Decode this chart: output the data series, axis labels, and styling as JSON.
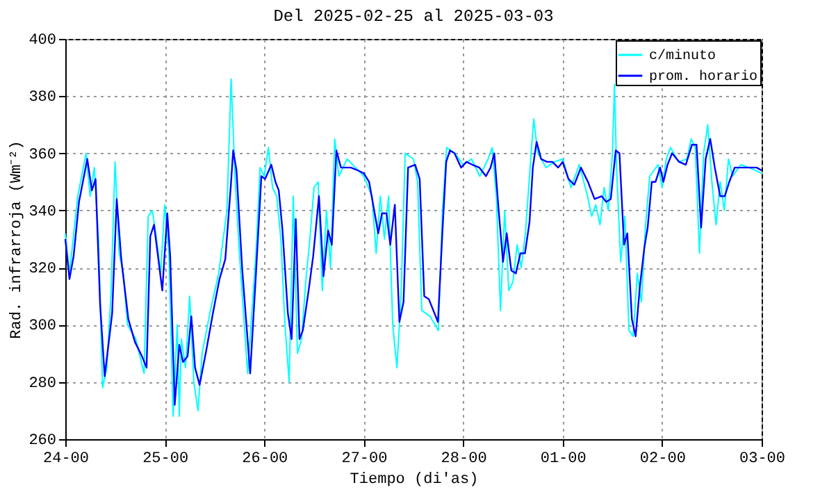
{
  "chart_data": {
    "type": "line",
    "title": "Del 2025-02-25 al 2025-03-03",
    "xlabel": "Tiempo (di'as)",
    "ylabel": "Rad. infrarroja (Wm⁻²)",
    "xlim": [
      "2025-02-24T00:00",
      "2025-03-03T00:00"
    ],
    "xticks": [
      {
        "value": "2025-02-24T00:00",
        "label": "24-00"
      },
      {
        "value": "2025-02-25T00:00",
        "label": "25-00"
      },
      {
        "value": "2025-02-26T00:00",
        "label": "26-00"
      },
      {
        "value": "2025-02-27T00:00",
        "label": "27-00"
      },
      {
        "value": "2025-02-28T00:00",
        "label": "28-00"
      },
      {
        "value": "2025-03-01T00:00",
        "label": "01-00"
      },
      {
        "value": "2025-03-02T00:00",
        "label": "02-00"
      },
      {
        "value": "2025-03-03T00:00",
        "label": "03-00"
      }
    ],
    "ylim": [
      260,
      400
    ],
    "yticks": [
      260,
      280,
      300,
      320,
      340,
      360,
      380,
      400
    ],
    "grid": true,
    "legend": "top right",
    "marker": "none",
    "line_style": "solid",
    "series": [
      {
        "name": "c/minuto",
        "color": "#00ffff",
        "x": [
          "2025-02-24T00:00",
          "2025-02-24T01:00",
          "2025-02-24T03:00",
          "2025-02-24T05:00",
          "2025-02-24T06:00",
          "2025-02-24T07:00",
          "2025-02-24T08:00",
          "2025-02-24T09:00",
          "2025-02-24T10:00",
          "2025-02-24T11:00",
          "2025-02-24T12:00",
          "2025-02-24T13:00",
          "2025-02-24T14:00",
          "2025-02-24T15:00",
          "2025-02-24T17:00",
          "2025-02-24T19:00",
          "2025-02-24T20:00",
          "2025-02-24T21:00",
          "2025-02-24T22:00",
          "2025-02-24T23:00",
          "2025-02-25T00:00",
          "2025-02-25T01:00",
          "2025-02-25T02:00",
          "2025-02-25T03:00",
          "2025-02-25T03:30",
          "2025-02-25T04:00",
          "2025-02-25T05:00",
          "2025-02-25T06:00",
          "2025-02-25T07:00",
          "2025-02-25T08:00",
          "2025-02-25T09:00",
          "2025-02-25T11:00",
          "2025-02-25T13:00",
          "2025-02-25T15:00",
          "2025-02-25T16:00",
          "2025-02-25T17:00",
          "2025-02-25T18:00",
          "2025-02-25T20:00",
          "2025-02-25T22:00",
          "2025-02-25T23:00",
          "2025-02-26T00:00",
          "2025-02-26T01:00",
          "2025-02-26T02:00",
          "2025-02-26T03:00",
          "2025-02-26T04:00",
          "2025-02-26T05:00",
          "2025-02-26T06:00",
          "2025-02-26T07:00",
          "2025-02-26T08:00",
          "2025-02-26T09:00",
          "2025-02-26T10:00",
          "2025-02-26T11:00",
          "2025-02-26T12:00",
          "2025-02-26T13:00",
          "2025-02-26T14:00",
          "2025-02-26T15:00",
          "2025-02-26T16:00",
          "2025-02-26T17:00",
          "2025-02-26T18:00",
          "2025-02-26T20:00",
          "2025-02-26T22:00",
          "2025-02-27T00:00",
          "2025-02-27T02:00",
          "2025-02-27T03:00",
          "2025-02-27T04:00",
          "2025-02-27T05:00",
          "2025-02-27T06:00",
          "2025-02-27T07:00",
          "2025-02-27T08:00",
          "2025-02-27T09:00",
          "2025-02-27T10:00",
          "2025-02-27T12:00",
          "2025-02-27T13:00",
          "2025-02-27T14:00",
          "2025-02-27T16:00",
          "2025-02-27T18:00",
          "2025-02-27T19:00",
          "2025-02-27T20:00",
          "2025-02-27T22:00",
          "2025-02-28T00:00",
          "2025-02-28T02:00",
          "2025-02-28T04:00",
          "2025-02-28T06:00",
          "2025-02-28T07:00",
          "2025-02-28T08:00",
          "2025-02-28T09:00",
          "2025-02-28T10:00",
          "2025-02-28T11:00",
          "2025-02-28T12:00",
          "2025-02-28T13:00",
          "2025-02-28T14:00",
          "2025-02-28T15:00",
          "2025-02-28T16:00",
          "2025-02-28T17:00",
          "2025-02-28T18:00",
          "2025-02-28T20:00",
          "2025-02-28T22:00",
          "2025-03-01T00:00",
          "2025-03-01T02:00",
          "2025-03-01T04:00",
          "2025-03-01T06:00",
          "2025-03-01T07:00",
          "2025-03-01T08:00",
          "2025-03-01T09:00",
          "2025-03-01T10:00",
          "2025-03-01T11:00",
          "2025-03-01T12:00",
          "2025-03-01T12:30",
          "2025-03-01T13:00",
          "2025-03-01T14:00",
          "2025-03-01T15:00",
          "2025-03-01T16:00",
          "2025-03-01T17:00",
          "2025-03-01T18:00",
          "2025-03-01T19:00",
          "2025-03-01T20:00",
          "2025-03-01T21:00",
          "2025-03-01T23:00",
          "2025-03-02T00:00",
          "2025-03-02T01:00",
          "2025-03-02T02:00",
          "2025-03-02T04:00",
          "2025-03-02T06:00",
          "2025-03-02T07:00",
          "2025-03-02T08:00",
          "2025-03-02T09:00",
          "2025-03-02T10:00",
          "2025-03-02T11:00",
          "2025-03-02T12:00",
          "2025-03-02T13:00",
          "2025-03-02T14:00",
          "2025-03-02T15:00",
          "2025-03-02T16:00",
          "2025-03-02T17:00",
          "2025-03-02T19:00",
          "2025-03-02T21:00",
          "2025-03-03T00:00"
        ],
        "values": [
          332,
          318,
          345,
          360,
          345,
          355,
          330,
          278,
          285,
          310,
          357,
          325,
          318,
          300,
          295,
          283,
          338,
          340,
          330,
          318,
          342,
          325,
          268,
          300,
          268,
          295,
          285,
          310,
          280,
          270,
          290,
          305,
          318,
          340,
          386,
          350,
          325,
          283,
          325,
          355,
          352,
          362,
          348,
          345,
          330,
          300,
          280,
          345,
          290,
          295,
          315,
          330,
          348,
          350,
          312,
          340,
          320,
          365,
          352,
          358,
          355,
          352,
          345,
          325,
          345,
          330,
          345,
          300,
          285,
          310,
          360,
          358,
          350,
          305,
          303,
          298,
          340,
          362,
          360,
          356,
          358,
          352,
          358,
          362,
          345,
          305,
          340,
          312,
          315,
          328,
          320,
          332,
          352,
          372,
          360,
          355,
          357,
          358,
          348,
          356,
          345,
          338,
          342,
          335,
          348,
          340,
          360,
          384,
          355,
          322,
          338,
          298,
          296,
          318,
          308,
          335,
          352,
          356,
          348,
          358,
          362,
          357,
          358,
          365,
          362,
          325,
          360,
          370,
          350,
          335,
          350,
          340,
          358,
          352,
          356,
          355,
          353
        ]
      },
      {
        "name": "prom. horario",
        "color": "#0000ff",
        "x": [
          "2025-02-24T00:00",
          "2025-02-24T01:00",
          "2025-02-24T02:00",
          "2025-02-24T03:18",
          "2025-02-24T05:18",
          "2025-02-24T06:24",
          "2025-02-24T07:18",
          "2025-02-24T08:24",
          "2025-02-24T09:30",
          "2025-02-24T11:18",
          "2025-02-24T12:24",
          "2025-02-24T13:30",
          "2025-02-24T15:12",
          "2025-02-24T16:48",
          "2025-02-24T18:30",
          "2025-02-24T19:36",
          "2025-02-24T20:30",
          "2025-02-24T21:24",
          "2025-02-24T23:24",
          "2025-02-25T00:36",
          "2025-02-25T01:18",
          "2025-02-25T02:24",
          "2025-02-25T03:30",
          "2025-02-25T04:24",
          "2025-02-25T05:30",
          "2025-02-25T06:24",
          "2025-02-25T07:18",
          "2025-02-25T08:24",
          "2025-02-25T10:00",
          "2025-02-25T11:36",
          "2025-02-25T13:12",
          "2025-02-25T14:36",
          "2025-02-25T15:54",
          "2025-02-25T16:30",
          "2025-02-25T17:18",
          "2025-02-25T18:42",
          "2025-02-25T20:36",
          "2025-02-25T22:00",
          "2025-02-25T23:18",
          "2025-02-26T00:12",
          "2025-02-26T01:42",
          "2025-02-26T02:42",
          "2025-02-26T03:30",
          "2025-02-26T04:24",
          "2025-02-26T05:42",
          "2025-02-26T06:36",
          "2025-02-26T07:36",
          "2025-02-26T08:30",
          "2025-02-26T09:18",
          "2025-02-26T10:42",
          "2025-02-26T11:48",
          "2025-02-26T13:12",
          "2025-02-26T14:18",
          "2025-02-26T15:24",
          "2025-02-26T16:18",
          "2025-02-26T17:24",
          "2025-02-26T18:30",
          "2025-02-26T19:48",
          "2025-02-26T20:54",
          "2025-02-26T22:36",
          "2025-02-27T00:00",
          "2025-02-27T01:18",
          "2025-02-27T02:24",
          "2025-02-27T03:30",
          "2025-02-27T04:24",
          "2025-02-27T05:30",
          "2025-02-27T06:24",
          "2025-02-27T07:30",
          "2025-02-27T08:36",
          "2025-02-27T09:36",
          "2025-02-27T10:42",
          "2025-02-27T12:24",
          "2025-02-27T13:30",
          "2025-02-27T14:36",
          "2025-02-27T15:42",
          "2025-02-27T16:48",
          "2025-02-27T17:54",
          "2025-02-27T19:00",
          "2025-02-27T19:54",
          "2025-02-27T20:48",
          "2025-02-27T21:54",
          "2025-02-27T23:30",
          "2025-02-28T00:48",
          "2025-02-28T02:12",
          "2025-02-28T03:54",
          "2025-02-28T05:30",
          "2025-02-28T06:36",
          "2025-02-28T07:30",
          "2025-02-28T08:30",
          "2025-02-28T09:36",
          "2025-02-28T10:30",
          "2025-02-28T11:36",
          "2025-02-28T12:42",
          "2025-02-28T13:48",
          "2025-02-28T14:54",
          "2025-02-28T16:00",
          "2025-02-28T16:48",
          "2025-02-28T17:42",
          "2025-02-28T18:48",
          "2025-02-28T20:12",
          "2025-02-28T21:30",
          "2025-02-28T22:54",
          "2025-03-01T00:00",
          "2025-03-01T01:24",
          "2025-03-01T02:48",
          "2025-03-01T04:24",
          "2025-03-01T06:06",
          "2025-03-01T07:42",
          "2025-03-01T09:24",
          "2025-03-01T10:30",
          "2025-03-01T11:36",
          "2025-03-01T12:48",
          "2025-03-01T13:42",
          "2025-03-01T14:48",
          "2025-03-01T15:36",
          "2025-03-01T16:42",
          "2025-03-01T17:36",
          "2025-03-01T18:36",
          "2025-03-01T19:42",
          "2025-03-01T20:30",
          "2025-03-01T21:30",
          "2025-03-01T22:24",
          "2025-03-01T23:30",
          "2025-03-02T00:18",
          "2025-03-02T01:18",
          "2025-03-02T02:24",
          "2025-03-02T04:06",
          "2025-03-02T05:42",
          "2025-03-02T07:12",
          "2025-03-02T08:18",
          "2025-03-02T09:24",
          "2025-03-02T10:30",
          "2025-03-02T11:36",
          "2025-03-02T12:42",
          "2025-03-02T14:00",
          "2025-03-02T15:06",
          "2025-03-02T16:12",
          "2025-03-02T17:30",
          "2025-03-02T19:00",
          "2025-03-02T20:36",
          "2025-03-02T22:48",
          "2025-03-03T00:00"
        ],
        "values": [
          330,
          316,
          324,
          343,
          358,
          347,
          351,
          307,
          282,
          304,
          344,
          323,
          302,
          294,
          289,
          285,
          331,
          335,
          312,
          339,
          324,
          272,
          293,
          287,
          289,
          303,
          285,
          279,
          291,
          304,
          316,
          323,
          348,
          361,
          354,
          319,
          283,
          318,
          352,
          351,
          356,
          350,
          347,
          333,
          304,
          295,
          337,
          295,
          298,
          312,
          324,
          345,
          317,
          333,
          328,
          361,
          355,
          355,
          355,
          354,
          353,
          350,
          341,
          332,
          339,
          339,
          328,
          342,
          301,
          308,
          355,
          356,
          351,
          310,
          309,
          305,
          301,
          333,
          357,
          361,
          360,
          355,
          357,
          356,
          355,
          352,
          355,
          360,
          341,
          322,
          332,
          319,
          318,
          325,
          325,
          336,
          355,
          364,
          358,
          357,
          357,
          355,
          357,
          351,
          349,
          355,
          350,
          344,
          345,
          343,
          344,
          361,
          360,
          328,
          332,
          302,
          296,
          313,
          327,
          334,
          350,
          350,
          355,
          350,
          356,
          360,
          357,
          356,
          363,
          363,
          334,
          358,
          365,
          355,
          345,
          345,
          350,
          355,
          355,
          355,
          355,
          354
        ]
      }
    ]
  }
}
